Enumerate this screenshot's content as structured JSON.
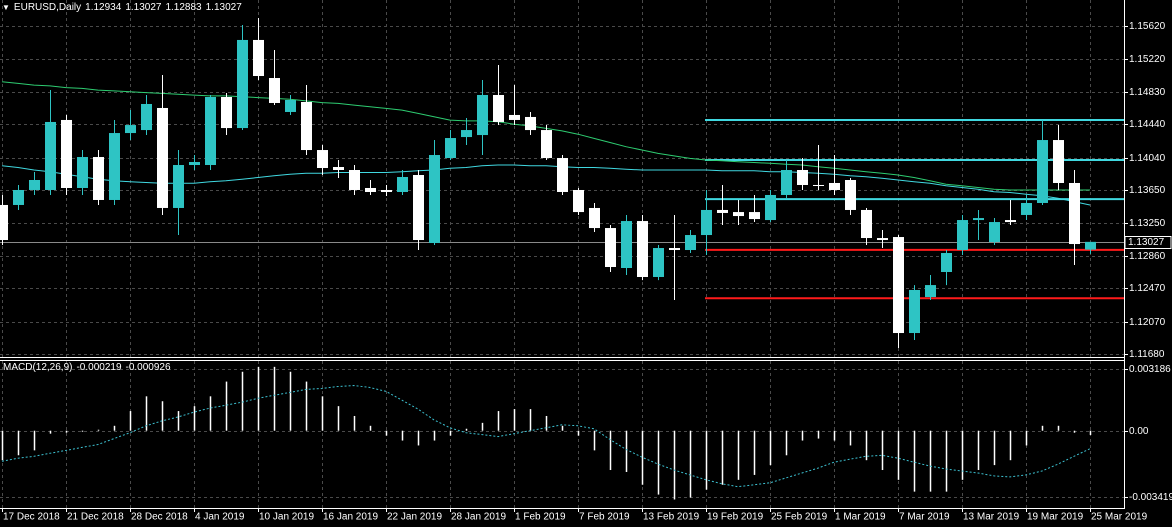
{
  "chart_data": [
    {
      "type": "candlestick",
      "title": "EURUSD,Daily",
      "categories": [
        "17 Dec 2018",
        null,
        null,
        null,
        "21 Dec 2018",
        null,
        null,
        null,
        "28 Dec 2018",
        null,
        null,
        null,
        "4 Jan 2019",
        null,
        null,
        null,
        "10 Jan 2019",
        null,
        null,
        null,
        "16 Jan 2019",
        null,
        null,
        null,
        "22 Jan 2019",
        null,
        null,
        null,
        "28 Jan 2019",
        null,
        null,
        null,
        "1 Feb 2019",
        null,
        null,
        null,
        "7 Feb 2019",
        null,
        null,
        null,
        "13 Feb 2019",
        null,
        null,
        null,
        "19 Feb 2019",
        null,
        null,
        null,
        "25 Feb 2019",
        null,
        null,
        null,
        "1 Mar 2019",
        null,
        null,
        null,
        "7 Mar 2019",
        null,
        null,
        null,
        "13 Mar 2019",
        null,
        null,
        null,
        "19 Mar 2019",
        null,
        null,
        null,
        "25 Mar 2019"
      ],
      "open": [
        1.1347,
        1.1347,
        1.1365,
        1.1365,
        1.14491,
        1.13674,
        1.14046,
        1.1353,
        1.14334,
        1.1437,
        1.14635,
        1.13434,
        1.1395,
        1.1395,
        1.14767,
        1.14394,
        1.15452,
        1.14995,
        1.14587,
        1.14707,
        1.1413,
        1.13926,
        1.1389,
        1.13674,
        1.1365,
        1.13626,
        1.1383,
        1.13013,
        1.14034,
        1.14286,
        1.1431,
        1.14791,
        1.14551,
        1.14527,
        1.1437,
        1.14034,
        1.1365,
        1.13434,
        1.13193,
        1.12713,
        1.13277,
        1.12605,
        1.12953,
        1.12929,
        1.13109,
        1.1341,
        1.13385,
        1.13385,
        1.13289,
        1.1359,
        1.1389,
        1.1371,
        1.13734,
        1.1377,
        1.1341,
        1.13073,
        1.13085,
        1.11932,
        1.12364,
        1.12665,
        1.12929,
        1.13289,
        1.13025,
        1.13289,
        1.1335,
        1.13494,
        1.1425,
        1.13734,
        1.12934
      ],
      "high": [
        1.1359,
        1.1371,
        1.13866,
        1.14851,
        1.14551,
        1.1413,
        1.1413,
        1.14491,
        1.14611,
        1.14791,
        1.15031,
        1.1413,
        1.1407,
        1.14791,
        1.14815,
        1.15632,
        1.15716,
        1.15331,
        1.14791,
        1.14911,
        1.1419,
        1.1401,
        1.1395,
        1.1377,
        1.1371,
        1.1389,
        1.1389,
        1.1425,
        1.1437,
        1.14515,
        1.14971,
        1.15151,
        1.14911,
        1.14587,
        1.1443,
        1.1407,
        1.13674,
        1.13494,
        1.13229,
        1.1335,
        1.1335,
        1.12989,
        1.1335,
        1.13169,
        1.1365,
        1.1371,
        1.1353,
        1.1359,
        1.1365,
        1.1401,
        1.14034,
        1.1419,
        1.1407,
        1.13794,
        1.13434,
        1.13169,
        1.13109,
        1.12508,
        1.12629,
        1.12929,
        1.1335,
        1.1341,
        1.13313,
        1.1353,
        1.1359,
        1.14491,
        1.1443,
        1.1389,
        1.13027
      ],
      "low": [
        1.12989,
        1.1341,
        1.1359,
        1.1359,
        1.1359,
        1.1359,
        1.1347,
        1.1347,
        1.1425,
        1.1431,
        1.1335,
        1.13109,
        1.1389,
        1.1389,
        1.1431,
        1.1437,
        1.14971,
        1.14671,
        1.14551,
        1.1407,
        1.1383,
        1.13794,
        1.1359,
        1.1359,
        1.13578,
        1.1359,
        1.12929,
        1.12989,
        1.1401,
        1.1419,
        1.1407,
        1.1443,
        1.1443,
        1.1431,
        1.1401,
        1.1359,
        1.1335,
        1.13145,
        1.12665,
        1.12629,
        1.12568,
        1.12568,
        1.12328,
        1.12893,
        1.12869,
        1.13229,
        1.13229,
        1.13265,
        1.13265,
        1.13554,
        1.1365,
        1.1365,
        1.1359,
        1.1335,
        1.12989,
        1.12953,
        1.11752,
        1.11848,
        1.12328,
        1.12508,
        1.12869,
        1.13049,
        1.12989,
        1.13229,
        1.13289,
        1.1347,
        1.1365,
        1.12749,
        1.12883
      ],
      "close": [
        1.13049,
        1.1365,
        1.1377,
        1.14467,
        1.13674,
        1.14046,
        1.1353,
        1.14334,
        1.1443,
        1.14683,
        1.13434,
        1.1395,
        1.13986,
        1.14767,
        1.14394,
        1.15452,
        1.15019,
        1.14695,
        1.14731,
        1.1413,
        1.13914,
        1.1389,
        1.1365,
        1.13626,
        1.13626,
        1.13806,
        1.13049,
        1.1407,
        1.14274,
        1.1437,
        1.14791,
        1.14467,
        1.14491,
        1.1437,
        1.14034,
        1.13626,
        1.13385,
        1.13193,
        1.12725,
        1.13277,
        1.12605,
        1.12953,
        1.12929,
        1.13109,
        1.1341,
        1.13374,
        1.13337,
        1.13301,
        1.1359,
        1.1389,
        1.1371,
        1.13698,
        1.1365,
        1.1341,
        1.13073,
        1.13049,
        1.11932,
        1.12449,
        1.12508,
        1.12893,
        1.13289,
        1.13313,
        1.13265,
        1.13265,
        1.13494,
        1.1425,
        1.13734,
        1.13001,
        1.13027
      ],
      "up_color": "#2ec4c4",
      "down_color": "#ffffff",
      "lines": [
        {
          "color": "#2ecc71",
          "values": [
            1.1495,
            1.1493,
            1.1491,
            1.149,
            1.1488,
            1.1487,
            1.1485,
            1.1484,
            1.1483,
            1.1482,
            1.1481,
            1.148,
            1.1479,
            1.1478,
            1.1478,
            1.1477,
            1.1476,
            1.1475,
            1.1474,
            1.1472,
            1.147,
            1.1469,
            1.1467,
            1.1465,
            1.1463,
            1.1461,
            1.1457,
            1.1453,
            1.1449,
            1.1448,
            1.1448,
            1.1447,
            1.1444,
            1.1442,
            1.1439,
            1.1436,
            1.1432,
            1.1427,
            1.1422,
            1.1417,
            1.1413,
            1.1409,
            1.1406,
            1.1403,
            1.1401,
            1.14,
            1.1399,
            1.1398,
            1.1397,
            1.1396,
            1.1395,
            1.1393,
            1.1391,
            1.1389,
            1.1387,
            1.1385,
            1.1383,
            1.138,
            1.1376,
            1.1372,
            1.137,
            1.1368,
            1.1366,
            1.1365,
            1.1365,
            1.1365,
            1.1365,
            1.1365,
            1.1365
          ]
        },
        {
          "color": "#40d8e0",
          "values": [
            1.1394,
            1.1392,
            1.1389,
            1.1387,
            1.1384,
            1.1381,
            1.1378,
            1.1376,
            1.1375,
            1.1374,
            1.1373,
            1.1373,
            1.1373,
            1.1375,
            1.1376,
            1.1378,
            1.138,
            1.1382,
            1.1384,
            1.1385,
            1.1385,
            1.1386,
            1.1386,
            1.1386,
            1.1386,
            1.1387,
            1.1388,
            1.1389,
            1.1391,
            1.1392,
            1.1394,
            1.1395,
            1.1395,
            1.1394,
            1.1394,
            1.1393,
            1.1392,
            1.1392,
            1.1391,
            1.139,
            1.1389,
            1.1389,
            1.1389,
            1.1389,
            1.1389,
            1.1388,
            1.1388,
            1.1388,
            1.1387,
            1.1387,
            1.1386,
            1.1385,
            1.1384,
            1.1382,
            1.1381,
            1.1379,
            1.1377,
            1.1375,
            1.1373,
            1.137,
            1.1368,
            1.1366,
            1.1363,
            1.1362,
            1.136,
            1.1358,
            1.1355,
            1.1351,
            1.1347
          ]
        }
      ],
      "levels": [
        {
          "value": 1.1449,
          "color": "#40d8e0"
        },
        {
          "value": 1.1401,
          "color": "#40d8e0"
        },
        {
          "value": 1.1354,
          "color": "#40d8e0"
        },
        {
          "value": 1.1293,
          "color": "#ff1a1a"
        },
        {
          "value": 1.1235,
          "color": "#ff1a1a"
        }
      ],
      "ylim": [
        1.11644,
        1.15932
      ],
      "yticks": [
        {
          "value": 1.1562,
          "label": "1.15620"
        },
        {
          "value": 1.1522,
          "label": "1.15220"
        },
        {
          "value": 1.1483,
          "label": "1.14830"
        },
        {
          "value": 1.1444,
          "label": "1.14440"
        },
        {
          "value": 1.1404,
          "label": "1.14040"
        },
        {
          "value": 1.1365,
          "label": "1.13650"
        },
        {
          "value": 1.1325,
          "label": "1.13250"
        },
        {
          "value": 1.1286,
          "label": "1.12860"
        },
        {
          "value": 1.1247,
          "label": "1.12470"
        },
        {
          "value": 1.1207,
          "label": "1.12070"
        },
        {
          "value": 1.1168,
          "label": "1.11680"
        }
      ],
      "grid": true
    },
    {
      "type": "macd",
      "title": "MACD(12,26,9)",
      "values": [
        -0.001518,
        -0.001265,
        -0.001012,
        -0.000152,
        -0.000101,
        -5.1e-05,
        5.1e-05,
        0.000253,
        0.001012,
        0.001771,
        0.001518,
        0.001012,
        0.001265,
        0.001771,
        0.00253,
        0.003036,
        0.003289,
        0.003289,
        0.003036,
        0.00253,
        0.001771,
        0.001265,
        0.000759,
        0.000253,
        -0.000253,
        -0.000506,
        -0.000759,
        -0.000506,
        -0.000253,
        0.000101,
        0.000405,
        0.001012,
        0.001113,
        0.001113,
        0.000759,
        0.000253,
        -0.000253,
        -0.001012,
        -0.002024,
        -0.002125,
        -0.002783,
        -0.003289,
        -0.003542,
        -0.003441,
        -0.003036,
        -0.002783,
        -0.00253,
        -0.002277,
        -0.001771,
        -0.001265,
        -0.000506,
        -0.000405,
        -0.000506,
        -0.000759,
        -0.001518,
        -0.002024,
        -0.00253,
        -0.003137,
        -0.003137,
        -0.003137,
        -0.00253,
        -0.002024,
        -0.001771,
        -0.001518,
        -0.000759,
        0.000253,
        0.000253,
        -0.000101,
        -0.000219
      ],
      "signal": [
        -0.001569,
        -0.001417,
        -0.001316,
        -0.001164,
        -0.001012,
        -0.00086,
        -0.000708,
        -0.000405,
        -0.000101,
        0.000253,
        0.000506,
        0.000708,
        0.000961,
        0.001164,
        0.001316,
        0.001467,
        0.00167,
        0.001822,
        0.001973,
        0.002125,
        0.002176,
        0.002277,
        0.002328,
        0.002226,
        0.002024,
        0.001569,
        0.001113,
        0.000557,
        0.000152,
        -0.000101,
        -0.000202,
        -0.000304,
        -0.000152,
        0,
        0.000152,
        0.000304,
        0.000253,
        0.000101,
        -0.000455,
        -0.000961,
        -0.001366,
        -0.00172,
        -0.002024,
        -0.002277,
        -0.00253,
        -0.002732,
        -0.002884,
        -0.002783,
        -0.002682,
        -0.002429,
        -0.002176,
        -0.001923,
        -0.001619,
        -0.001467,
        -0.001316,
        -0.001265,
        -0.001417,
        -0.001619,
        -0.001822,
        -0.001973,
        -0.002075,
        -0.002176,
        -0.002328,
        -0.002378,
        -0.002277,
        -0.002075,
        -0.00172,
        -0.001316,
        -0.000926
      ],
      "color": "#ffffff",
      "signal_color": "#3cc0d0",
      "ylim": [
        -0.00398,
        0.00359
      ],
      "yticks": [
        0.003186,
        {
          "value": 0,
          "label": "0.00"
        },
        -0.003419
      ],
      "grid": true
    }
  ]
}
